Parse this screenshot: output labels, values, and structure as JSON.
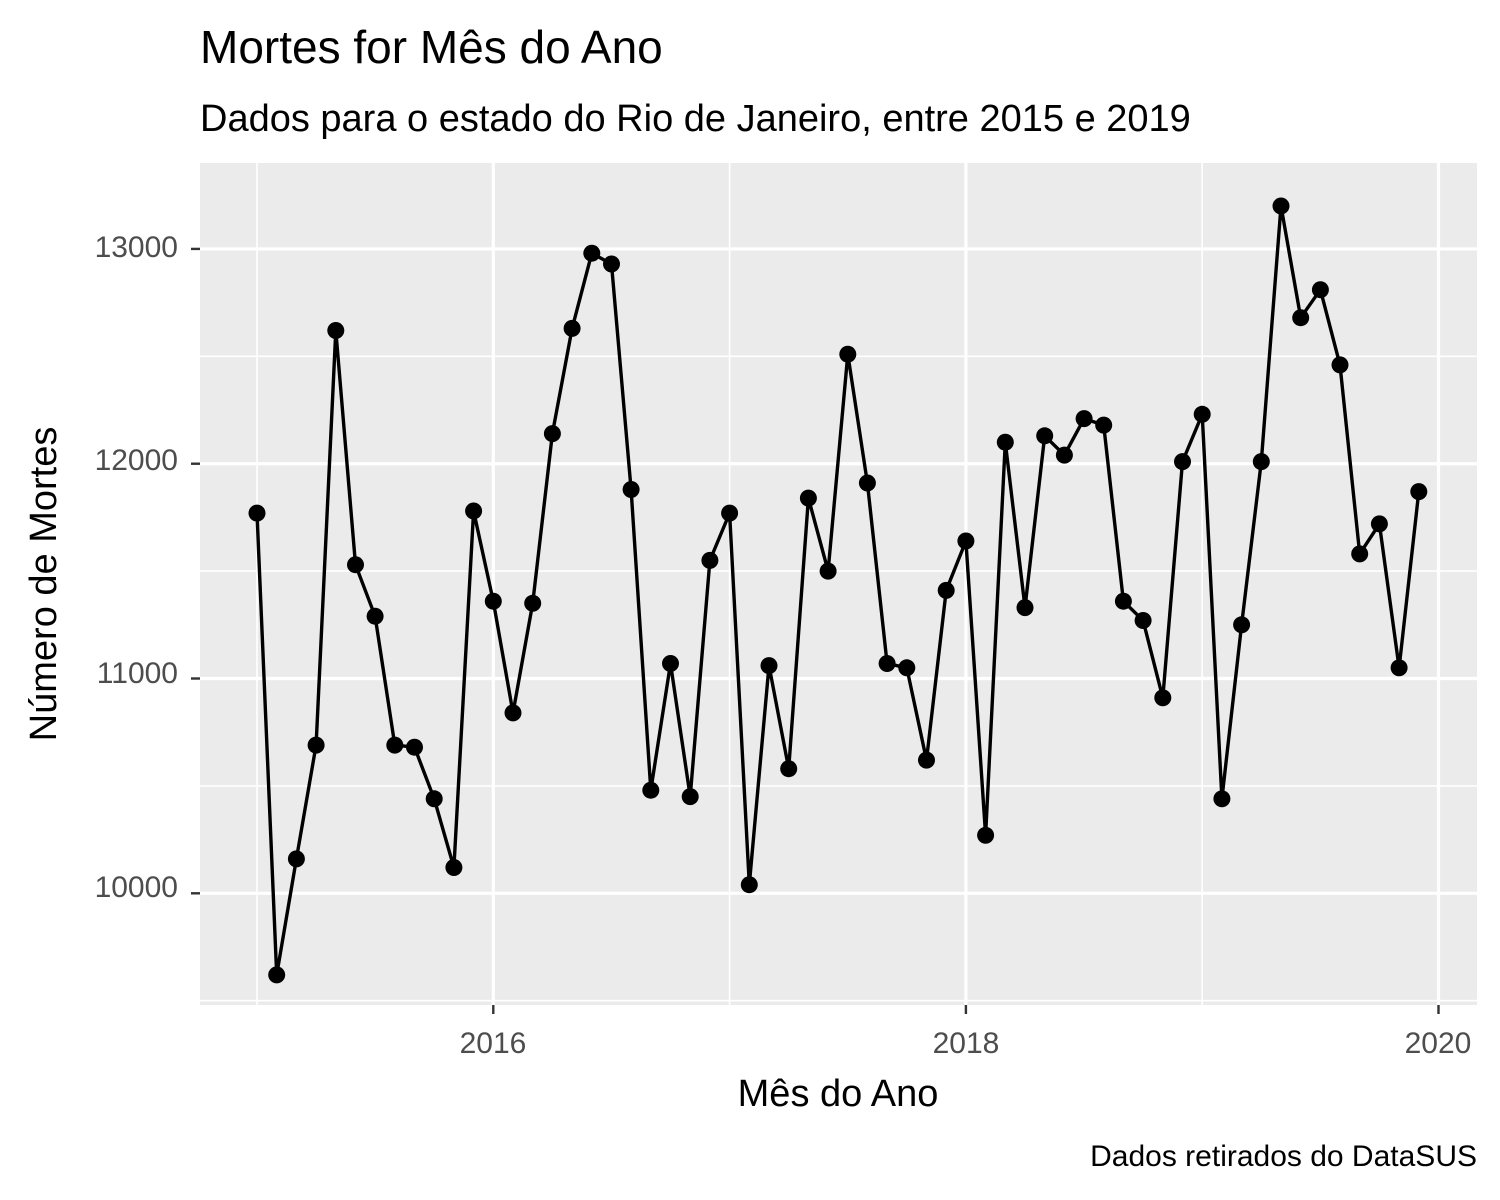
{
  "chart_data": {
    "type": "line",
    "title": "Mortes for Mês do Ano",
    "subtitle": "Dados para o estado do Rio de Janeiro, entre 2015 e 2019",
    "xlabel": "Mês do Ano",
    "ylabel": "Número de Mortes",
    "caption": "Dados retirados do DataSUS",
    "x_ticks": [
      "2016",
      "2018",
      "2020"
    ],
    "y_ticks": [
      "10000",
      "11000",
      "12000",
      "13000"
    ],
    "ylim": [
      9480,
      13400
    ],
    "grid": true,
    "markers": true,
    "colors": {
      "panel": "#ebebeb",
      "grid": "#ffffff",
      "line": "#000000"
    },
    "series": [
      {
        "x": [
          "2015-01",
          "2015-02",
          "2015-03",
          "2015-04",
          "2015-05",
          "2015-06",
          "2015-07",
          "2015-08",
          "2015-09",
          "2015-10",
          "2015-11",
          "2015-12",
          "2016-01",
          "2016-02",
          "2016-03",
          "2016-04",
          "2016-05",
          "2016-06",
          "2016-07",
          "2016-08",
          "2016-09",
          "2016-10",
          "2016-11",
          "2016-12",
          "2017-01",
          "2017-02",
          "2017-03",
          "2017-04",
          "2017-05",
          "2017-06",
          "2017-07",
          "2017-08",
          "2017-09",
          "2017-10",
          "2017-11",
          "2017-12",
          "2018-01",
          "2018-02",
          "2018-03",
          "2018-04",
          "2018-05",
          "2018-06",
          "2018-07",
          "2018-08",
          "2018-09",
          "2018-10",
          "2018-11",
          "2018-12",
          "2019-01",
          "2019-02",
          "2019-03",
          "2019-04",
          "2019-05",
          "2019-06",
          "2019-07",
          "2019-08",
          "2019-09",
          "2019-10",
          "2019-11",
          "2019-12"
        ],
        "values": [
          11770,
          9620,
          10160,
          10690,
          12620,
          11530,
          11290,
          10690,
          10680,
          10440,
          10120,
          11780,
          11360,
          10840,
          11350,
          12140,
          12630,
          12980,
          12930,
          11880,
          10480,
          11070,
          10450,
          11550,
          11770,
          10040,
          11060,
          10580,
          11840,
          11500,
          12510,
          11910,
          11070,
          11050,
          10620,
          11410,
          11640,
          10270,
          12100,
          11330,
          12130,
          12040,
          12210,
          12180,
          11360,
          11270,
          10910,
          12010,
          12230,
          10440,
          11250,
          12010,
          13200,
          12680,
          12810,
          12460,
          11580,
          11720,
          11050,
          11870
        ]
      }
    ]
  }
}
